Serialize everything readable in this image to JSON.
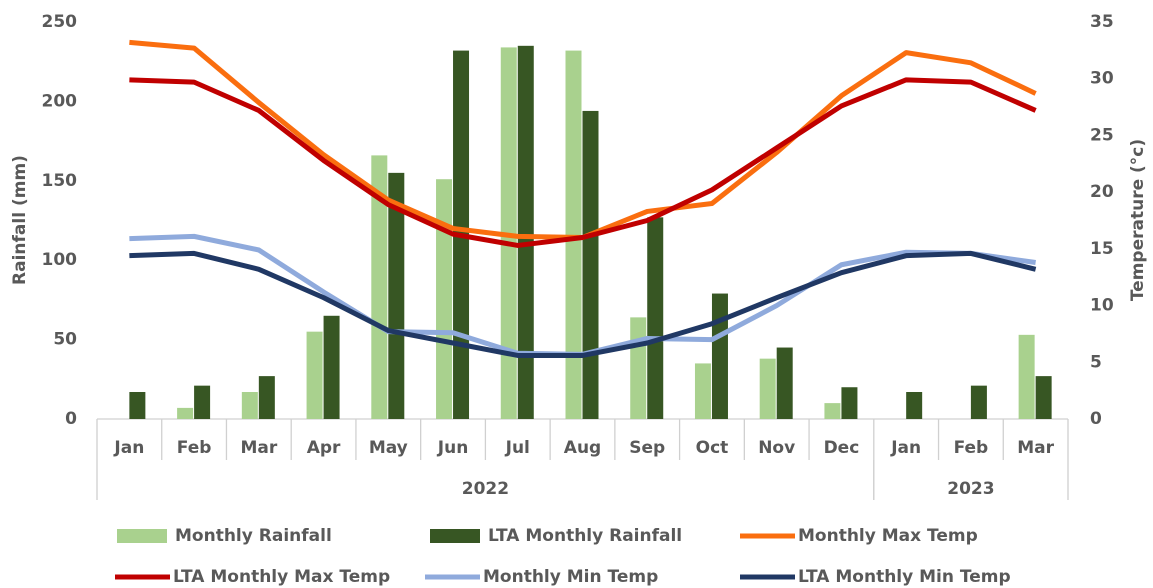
{
  "chart_data": {
    "type": "combo",
    "y_label": "Rainfall (mm)",
    "y2_label": "Temperature (°c)",
    "categories": [
      "Jan",
      "Feb",
      "Mar",
      "Apr",
      "May",
      "Jun",
      "Jul",
      "Aug",
      "Sep",
      "Oct",
      "Nov",
      "Dec",
      "Jan",
      "Feb",
      "Mar"
    ],
    "groups": [
      {
        "label": "2022",
        "span": [
          0,
          11
        ]
      },
      {
        "label": "2023",
        "span": [
          12,
          14
        ]
      }
    ],
    "ylim": [
      0,
      250
    ],
    "yticks": [
      0,
      50,
      100,
      150,
      200,
      250
    ],
    "y2lim": [
      0,
      35
    ],
    "y2ticks": [
      0,
      5,
      10,
      15,
      20,
      25,
      30,
      35
    ],
    "series": [
      {
        "name": "Monthly Rainfall",
        "type": "bar",
        "color": "#a9d18e",
        "values": [
          0,
          7,
          17,
          55,
          166,
          151,
          234,
          232,
          64,
          35,
          38,
          10,
          0,
          0,
          53
        ]
      },
      {
        "name": "LTA Monthly Rainfall",
        "type": "bar",
        "color": "#375623",
        "values": [
          17,
          21,
          27,
          65,
          155,
          232,
          235,
          194,
          127,
          79,
          45,
          20,
          17,
          21,
          27
        ]
      },
      {
        "name": "Monthly Max Temp",
        "type": "line",
        "axis": "y2",
        "color": "#fa6e0f",
        "values": [
          33.2,
          32.7,
          27.9,
          23.3,
          19.3,
          16.8,
          16.1,
          16.0,
          18.3,
          19.0,
          23.5,
          28.5,
          32.3,
          31.4,
          28.7
        ]
      },
      {
        "name": "LTA Monthly Max Temp",
        "type": "line",
        "axis": "y2",
        "color": "#c00000",
        "values": [
          29.9,
          29.7,
          27.2,
          22.8,
          18.9,
          16.3,
          15.3,
          16.0,
          17.5,
          20.2,
          23.9,
          27.6,
          29.9,
          29.7,
          27.2
        ]
      },
      {
        "name": "Monthly Min Temp",
        "type": "line",
        "axis": "y2",
        "color": "#8faadc",
        "values": [
          15.9,
          16.1,
          14.9,
          11.2,
          7.7,
          7.6,
          5.8,
          5.7,
          7.1,
          7.0,
          10.0,
          13.6,
          14.7,
          14.6,
          13.8
        ]
      },
      {
        "name": "LTA Monthly Min Temp",
        "type": "line",
        "axis": "y2",
        "color": "#203864",
        "values": [
          14.4,
          14.6,
          13.2,
          10.7,
          7.8,
          6.7,
          5.6,
          5.6,
          6.7,
          8.4,
          10.7,
          12.9,
          14.4,
          14.6,
          13.2
        ]
      }
    ]
  }
}
